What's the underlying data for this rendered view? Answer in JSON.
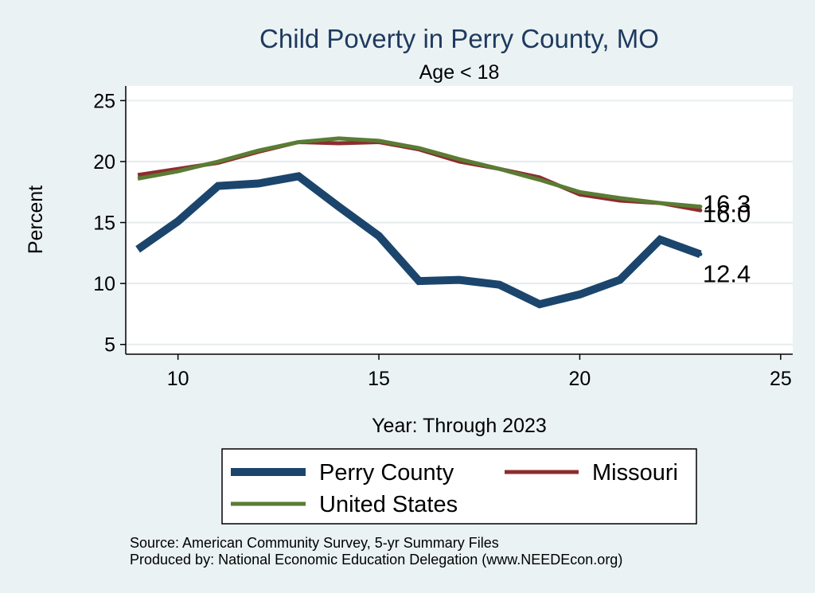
{
  "chart_data": {
    "type": "line",
    "title": "Child Poverty in Perry County, MO",
    "subtitle": "Age < 18",
    "xlabel": "Year: Through 2023",
    "ylabel": "Percent",
    "xlim": [
      8.7,
      25.3
    ],
    "ylim": [
      4.2,
      26.2
    ],
    "xticks": [
      10,
      15,
      20,
      25
    ],
    "yticks": [
      5,
      10,
      15,
      20,
      25
    ],
    "x": [
      9,
      10,
      11,
      12,
      13,
      14,
      15,
      16,
      17,
      18,
      19,
      20,
      21,
      22,
      23
    ],
    "series": [
      {
        "name": "Perry County",
        "color": "#1b456c",
        "values": [
          12.8,
          15.1,
          18.0,
          18.2,
          18.8,
          16.3,
          13.9,
          10.2,
          10.3,
          9.9,
          8.3,
          9.1,
          10.3,
          13.6,
          12.4
        ],
        "end_label": "12.4"
      },
      {
        "name": "Missouri",
        "color": "#8e2c2f",
        "values": [
          18.9,
          19.4,
          19.9,
          20.8,
          21.6,
          21.5,
          21.6,
          21.0,
          20.0,
          19.4,
          18.7,
          17.3,
          16.8,
          16.6,
          16.0
        ],
        "end_label": "16.0"
      },
      {
        "name": "United States",
        "color": "#5a7c34",
        "values": [
          18.6,
          19.2,
          20.0,
          20.9,
          21.6,
          21.9,
          21.7,
          21.1,
          20.2,
          19.4,
          18.5,
          17.5,
          17.0,
          16.6,
          16.3
        ],
        "end_label": "16.3"
      }
    ],
    "legend": {
      "position": "bottom",
      "entries": [
        "Perry County",
        "Missouri",
        "United States"
      ]
    },
    "notes": [
      "Source: American Community Survey, 5-yr Summary Files",
      "Produced by: National Economic Education Delegation (www.NEEDEcon.org)"
    ],
    "grid": true
  }
}
